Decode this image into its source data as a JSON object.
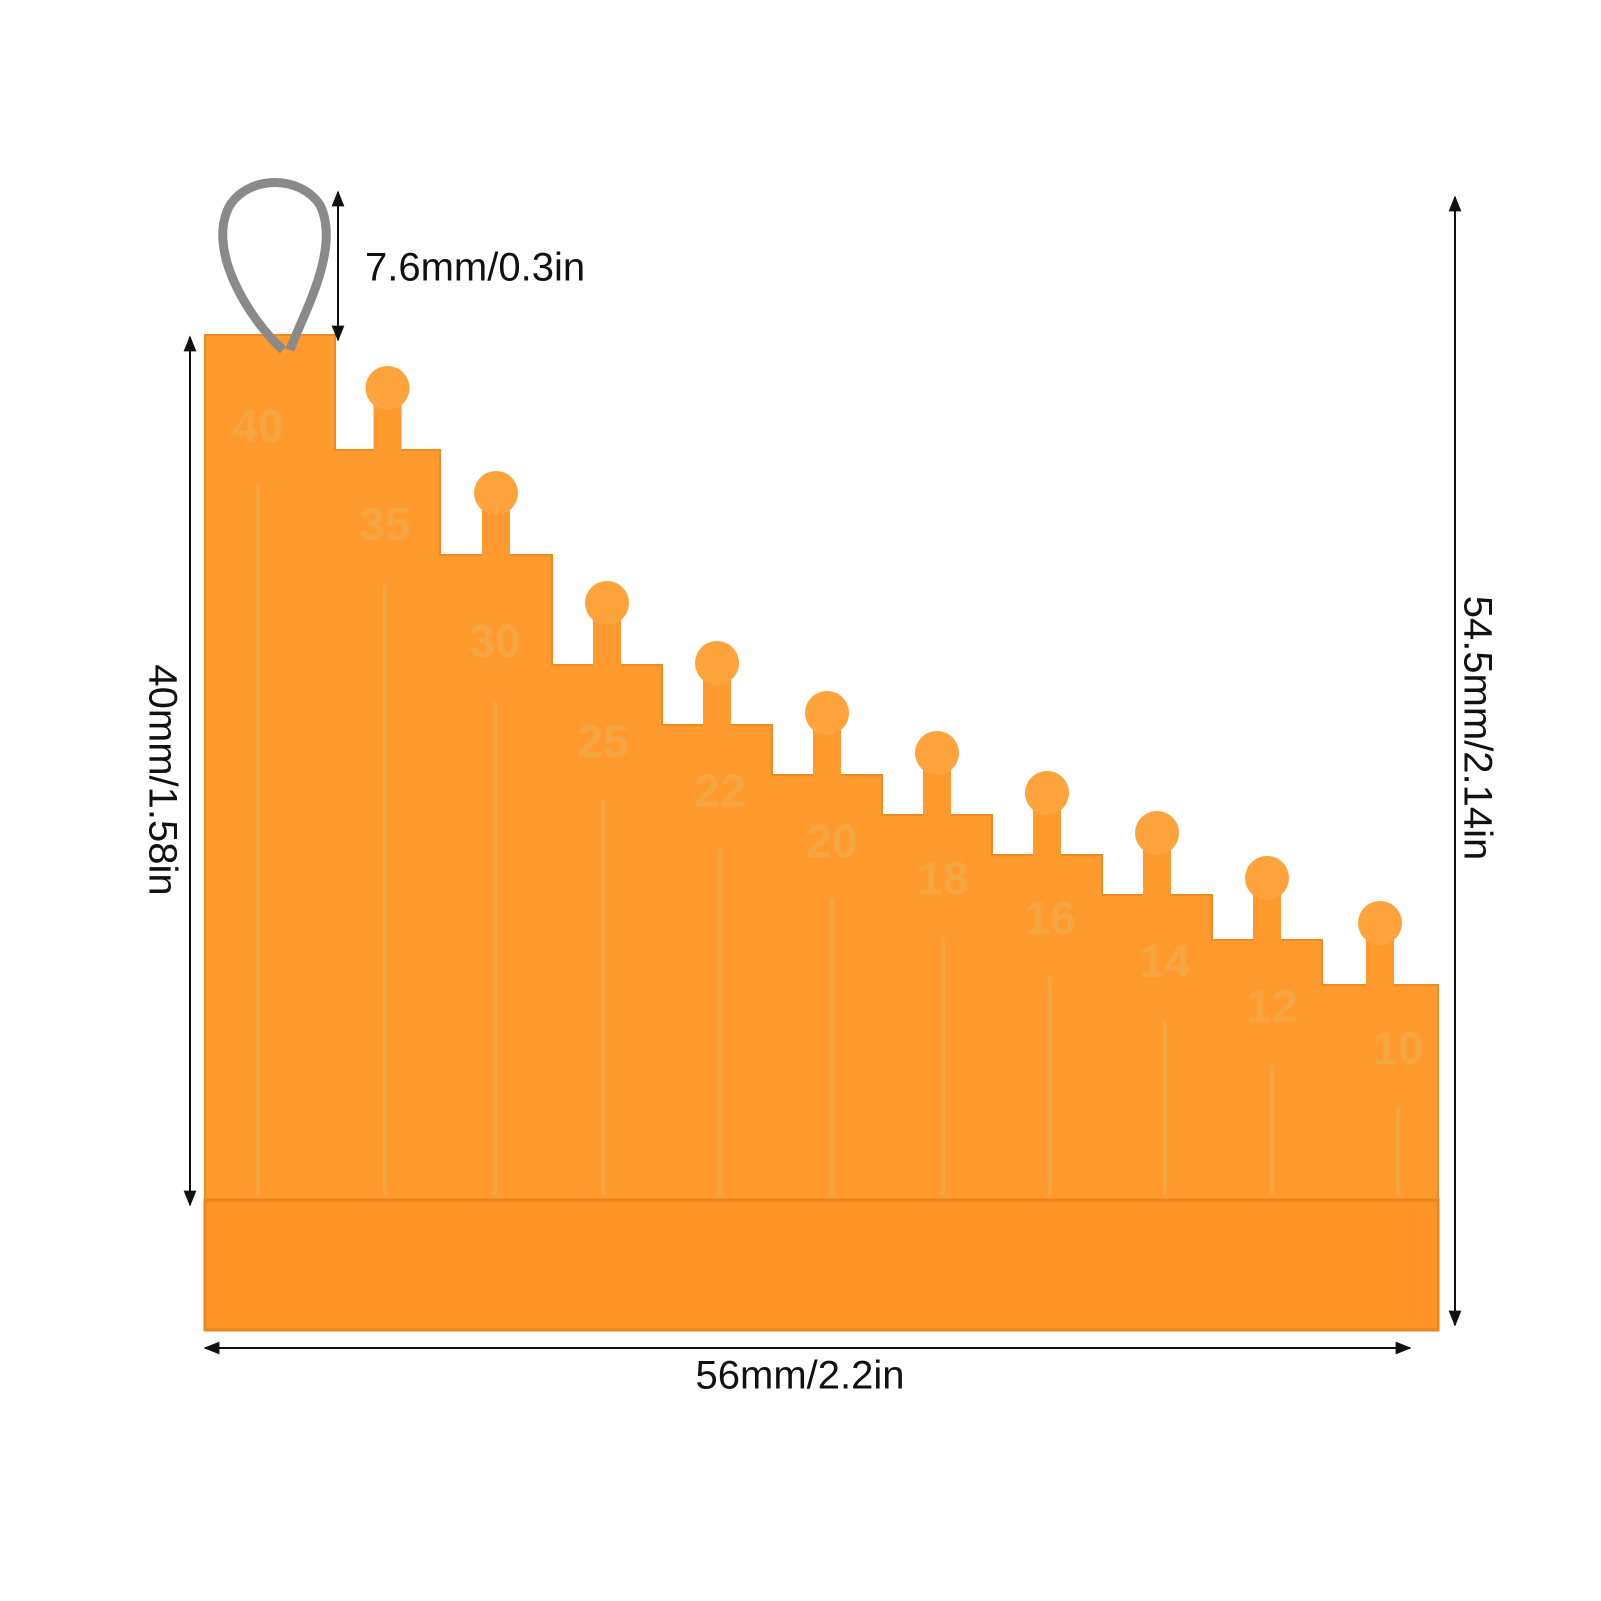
{
  "dimensions": {
    "hook": "7.6mm/0.3in",
    "height": "40mm/1.58in",
    "total_height": "54.5mm/2.14in",
    "width": "56mm/2.2in"
  },
  "steps": [
    40,
    35,
    30,
    25,
    22,
    20,
    18,
    16,
    14,
    12,
    10
  ]
}
